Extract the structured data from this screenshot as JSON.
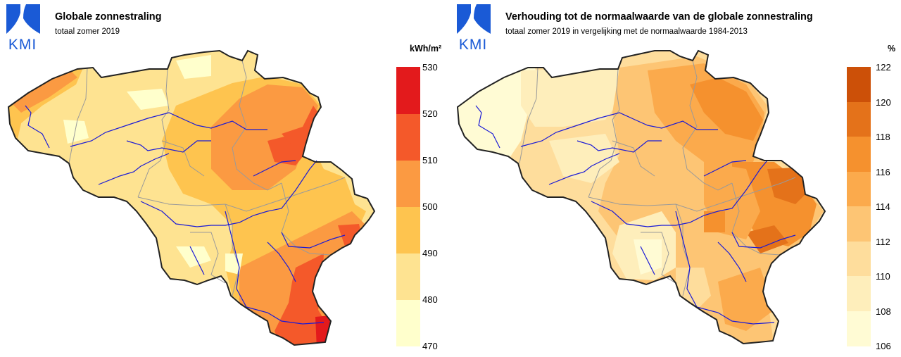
{
  "logo": {
    "text": "KMI",
    "brand_color": "#1a5ad6"
  },
  "left_map": {
    "title": "Globale zonnestraling",
    "subtitle": "totaal zomer 2019",
    "unit": "kWh/m²",
    "legend": {
      "min": 470,
      "max": 530,
      "ticks": [
        "530",
        "520",
        "510",
        "500",
        "490",
        "480",
        "470"
      ],
      "colors": [
        "#ffffcc",
        "#fee391",
        "#fec44f",
        "#fb9a42",
        "#f4592a",
        "#e31a1c"
      ]
    }
  },
  "right_map": {
    "title": "Verhouding tot de normaalwaarde van de globale zonnestraling",
    "subtitle": "totaal zomer 2019 in vergelijking met de normaalwaarde 1984-2013",
    "unit": "%",
    "legend": {
      "min": 106,
      "max": 122,
      "ticks": [
        "122",
        "120",
        "118",
        "116",
        "114",
        "112",
        "110",
        "108",
        "106"
      ],
      "colors": [
        "#fffbd4",
        "#feeebb",
        "#fedd9c",
        "#fdc574",
        "#fbaa4c",
        "#f5912e",
        "#e4721a",
        "#cc5008"
      ]
    }
  },
  "map_styles": {
    "border_color": "#222222",
    "river_color": "#1a1ad6",
    "province_color": "#9a9a9a"
  }
}
